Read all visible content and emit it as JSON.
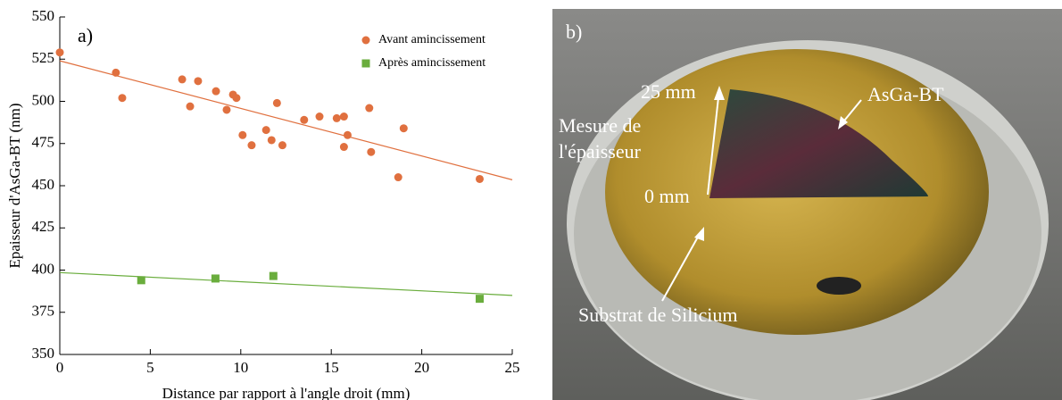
{
  "chart_data": {
    "type": "scatter",
    "annotation": "a)",
    "xlabel": "Distance par rapport à l'angle droit (mm)",
    "ylabel": "Epaisseur d'AsGa-BT (nm)",
    "xlim": [
      0,
      25
    ],
    "xticks": [
      0,
      5,
      10,
      15,
      20,
      25
    ],
    "ylim": [
      350,
      550
    ],
    "yticks": [
      350,
      375,
      400,
      425,
      450,
      475,
      500,
      525,
      550
    ],
    "legend": "upper right",
    "series": [
      {
        "name": "Avant amincissement",
        "color": "#e0703f",
        "marker": "circle",
        "x": [
          0,
          3.1,
          3.45,
          6.76,
          7.2,
          7.64,
          8.63,
          9.22,
          9.57,
          9.76,
          10.1,
          10.6,
          11.4,
          11.7,
          12.0,
          12.3,
          13.5,
          14.35,
          15.3,
          15.7,
          15.7,
          15.9,
          17.1,
          17.2,
          18.7,
          19.0,
          23.2
        ],
        "values": [
          529,
          517,
          502,
          513,
          497,
          512,
          506,
          495,
          504,
          502,
          480,
          474,
          483,
          477,
          499,
          474,
          489,
          491,
          490,
          491,
          473,
          480,
          496,
          470,
          455,
          484,
          454
        ],
        "fit": {
          "x": [
            0,
            25
          ],
          "values": [
            524,
            453.5
          ]
        }
      },
      {
        "name": "Après amincissement",
        "color": "#6aad3d",
        "marker": "square",
        "x": [
          4.5,
          8.6,
          11.8,
          23.2
        ],
        "values": [
          394,
          395,
          396.5,
          383
        ],
        "fit": {
          "x": [
            0,
            25
          ],
          "values": [
            398.5,
            385
          ]
        }
      }
    ]
  },
  "photo": {
    "label": "b)",
    "annotations": [
      "25 mm",
      "0 mm",
      "Mesure de",
      "l'épaisseur",
      "AsGa-BT",
      "Substrat de Silicium"
    ]
  }
}
